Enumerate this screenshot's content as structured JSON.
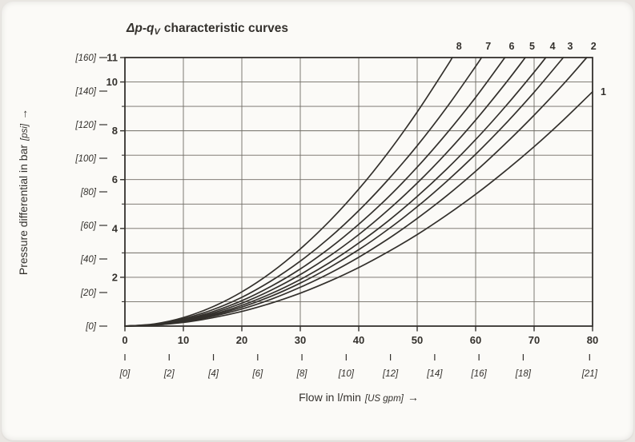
{
  "colors": {
    "ink": "#34312d",
    "grid": "#6f6b64",
    "curve": "#33302c",
    "paper": "#fbfaf7",
    "page_bg": "#e9e6e2"
  },
  "chart_data": {
    "type": "line",
    "title": {
      "prefix": "Δp-q",
      "sub": "V",
      "rest": "characteristic curves"
    },
    "xlabel": {
      "pre": "Flow in l/min",
      "bracket": "[US gpm]",
      "arrow": "→"
    },
    "ylabel": {
      "pre": "Pressure differential in bar",
      "bracket": "[psi]",
      "arrow": "→"
    },
    "xlim": [
      0,
      80
    ],
    "ylim": [
      0,
      11
    ],
    "psi_axis_max": 160,
    "lmin_per_gpm": 3.78541,
    "grid": {
      "vertical_lmin": [
        10,
        20,
        30,
        40,
        50,
        60,
        70
      ],
      "horizontal_bar": [
        1,
        2,
        3,
        4,
        5,
        6,
        7,
        8,
        9,
        10
      ]
    },
    "x_ticks_lmin": [
      {
        "v": 0,
        "label": "0"
      },
      {
        "v": 10,
        "label": "10"
      },
      {
        "v": 20,
        "label": "20"
      },
      {
        "v": 30,
        "label": "30"
      },
      {
        "v": 40,
        "label": "40"
      },
      {
        "v": 50,
        "label": "50"
      },
      {
        "v": 60,
        "label": "60"
      },
      {
        "v": 70,
        "label": "70"
      },
      {
        "v": 80,
        "label": "80"
      }
    ],
    "x_ticks_gpm": [
      {
        "v": 0,
        "label": "[0]"
      },
      {
        "v": 2,
        "label": "[2]"
      },
      {
        "v": 4,
        "label": "[4]"
      },
      {
        "v": 6,
        "label": "[6]"
      },
      {
        "v": 8,
        "label": "[8]"
      },
      {
        "v": 10,
        "label": "[10]"
      },
      {
        "v": 12,
        "label": "[12]"
      },
      {
        "v": 14,
        "label": "[14]"
      },
      {
        "v": 16,
        "label": "[16]"
      },
      {
        "v": 18,
        "label": "[18]"
      },
      {
        "v": 21,
        "label": "[21]"
      }
    ],
    "y_ticks_bar_labeled": [
      {
        "v": 11,
        "label": "11"
      },
      {
        "v": 10,
        "label": "10"
      },
      {
        "v": 8,
        "label": "8"
      },
      {
        "v": 6,
        "label": "6"
      },
      {
        "v": 4,
        "label": "4"
      },
      {
        "v": 2,
        "label": "2"
      }
    ],
    "y_ticks_bar_minor": [
      1,
      3,
      5,
      7,
      9
    ],
    "y_ticks_psi": [
      {
        "v": 160,
        "label": "[160]"
      },
      {
        "v": 140,
        "label": "[140]"
      },
      {
        "v": 120,
        "label": "[120]"
      },
      {
        "v": 100,
        "label": "[100]"
      },
      {
        "v": 80,
        "label": "[80]"
      },
      {
        "v": 60,
        "label": "[60]"
      },
      {
        "v": 40,
        "label": "[40]"
      },
      {
        "v": 20,
        "label": "[20]"
      },
      {
        "v": 0,
        "label": "[0]"
      }
    ],
    "series": [
      {
        "label": "1",
        "label_pos": "right",
        "points": [
          [
            0,
            0
          ],
          [
            5,
            0.04
          ],
          [
            10,
            0.15
          ],
          [
            15,
            0.34
          ],
          [
            20,
            0.6
          ],
          [
            25,
            0.94
          ],
          [
            30,
            1.35
          ],
          [
            35,
            1.84
          ],
          [
            40,
            2.4
          ],
          [
            45,
            3.04
          ],
          [
            50,
            3.75
          ],
          [
            55,
            4.54
          ],
          [
            60,
            5.4
          ],
          [
            65,
            6.34
          ],
          [
            70,
            7.35
          ],
          [
            75,
            8.44
          ],
          [
            80,
            9.6
          ]
        ]
      },
      {
        "label": "2",
        "label_pos": "top",
        "points": [
          [
            0,
            0
          ],
          [
            5,
            0.04
          ],
          [
            10,
            0.18
          ],
          [
            15,
            0.4
          ],
          [
            20,
            0.7
          ],
          [
            25,
            1.1
          ],
          [
            30,
            1.59
          ],
          [
            35,
            2.16
          ],
          [
            40,
            2.82
          ],
          [
            45,
            3.57
          ],
          [
            50,
            4.41
          ],
          [
            55,
            5.33
          ],
          [
            60,
            6.34
          ],
          [
            65,
            7.45
          ],
          [
            70,
            8.64
          ],
          [
            75,
            9.91
          ],
          [
            79,
            11
          ]
        ]
      },
      {
        "label": "3",
        "label_pos": "top",
        "points": [
          [
            0,
            0
          ],
          [
            5,
            0.05
          ],
          [
            10,
            0.2
          ],
          [
            15,
            0.44
          ],
          [
            20,
            0.78
          ],
          [
            25,
            1.22
          ],
          [
            30,
            1.76
          ],
          [
            35,
            2.4
          ],
          [
            40,
            3.13
          ],
          [
            45,
            3.96
          ],
          [
            50,
            4.89
          ],
          [
            55,
            5.92
          ],
          [
            60,
            7.04
          ],
          [
            65,
            8.26
          ],
          [
            70,
            9.58
          ],
          [
            75,
            11
          ]
        ]
      },
      {
        "label": "4",
        "label_pos": "top",
        "points": [
          [
            0,
            0
          ],
          [
            5,
            0.05
          ],
          [
            10,
            0.21
          ],
          [
            15,
            0.48
          ],
          [
            20,
            0.85
          ],
          [
            25,
            1.33
          ],
          [
            30,
            1.91
          ],
          [
            35,
            2.6
          ],
          [
            40,
            3.4
          ],
          [
            45,
            4.3
          ],
          [
            50,
            5.31
          ],
          [
            55,
            6.42
          ],
          [
            60,
            7.64
          ],
          [
            65,
            8.97
          ],
          [
            70,
            10.4
          ],
          [
            72,
            11
          ]
        ]
      },
      {
        "label": "5",
        "label_pos": "top",
        "points": [
          [
            0,
            0
          ],
          [
            5,
            0.06
          ],
          [
            10,
            0.23
          ],
          [
            15,
            0.53
          ],
          [
            20,
            0.94
          ],
          [
            25,
            1.47
          ],
          [
            30,
            2.11
          ],
          [
            35,
            2.87
          ],
          [
            40,
            3.75
          ],
          [
            45,
            4.75
          ],
          [
            50,
            5.86
          ],
          [
            55,
            7.09
          ],
          [
            60,
            8.44
          ],
          [
            65,
            9.91
          ],
          [
            68.5,
            11
          ]
        ]
      },
      {
        "label": "6",
        "label_pos": "top",
        "points": [
          [
            0,
            0
          ],
          [
            5,
            0.07
          ],
          [
            10,
            0.26
          ],
          [
            15,
            0.59
          ],
          [
            20,
            1.04
          ],
          [
            25,
            1.63
          ],
          [
            30,
            2.34
          ],
          [
            35,
            3.19
          ],
          [
            40,
            4.17
          ],
          [
            45,
            5.27
          ],
          [
            50,
            6.51
          ],
          [
            55,
            7.88
          ],
          [
            60,
            9.37
          ],
          [
            65,
            11
          ]
        ]
      },
      {
        "label": "7",
        "label_pos": "top",
        "points": [
          [
            0,
            0
          ],
          [
            5,
            0.07
          ],
          [
            10,
            0.3
          ],
          [
            15,
            0.67
          ],
          [
            20,
            1.18
          ],
          [
            25,
            1.85
          ],
          [
            30,
            2.66
          ],
          [
            35,
            3.62
          ],
          [
            40,
            4.73
          ],
          [
            45,
            5.99
          ],
          [
            50,
            7.39
          ],
          [
            55,
            8.94
          ],
          [
            60,
            10.64
          ],
          [
            61,
            11
          ]
        ]
      },
      {
        "label": "8",
        "label_pos": "top",
        "points": [
          [
            0,
            0
          ],
          [
            5,
            0.09
          ],
          [
            10,
            0.35
          ],
          [
            15,
            0.79
          ],
          [
            20,
            1.4
          ],
          [
            25,
            2.19
          ],
          [
            30,
            3.16
          ],
          [
            35,
            4.3
          ],
          [
            40,
            5.61
          ],
          [
            45,
            7.1
          ],
          [
            50,
            8.77
          ],
          [
            55,
            10.61
          ],
          [
            56,
            11
          ]
        ]
      }
    ]
  }
}
